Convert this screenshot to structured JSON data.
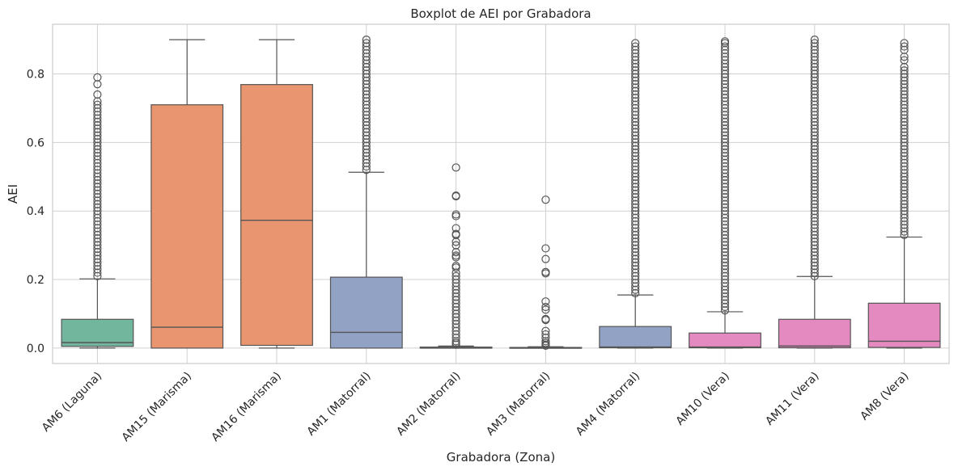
{
  "chart_data": {
    "type": "boxplot",
    "title": "Boxplot de AEI por Grabadora",
    "xlabel": "Grabadora (Zona)",
    "ylabel": "AEI",
    "ylim": [
      -0.045,
      0.945
    ],
    "yticks": [
      0.0,
      0.2,
      0.4,
      0.6,
      0.8
    ],
    "ytick_labels": [
      "0.0",
      "0.2",
      "0.4",
      "0.6",
      "0.8"
    ],
    "grid": true,
    "categories": [
      "AM6 (Laguna)",
      "AM15 (Marisma)",
      "AM16 (Marisma)",
      "AM1 (Matorral)",
      "AM2 (Matorral)",
      "AM3 (Matorral)",
      "AM4 (Matorral)",
      "AM10 (Vera)",
      "AM11 (Vera)",
      "AM8 (Vera)"
    ],
    "boxes": [
      {
        "category": "AM6 (Laguna)",
        "color": "#72b69e",
        "min": 0.0,
        "q1": 0.005,
        "median": 0.016,
        "q3": 0.084,
        "whisker_high": 0.202,
        "outliers": [
          0.79,
          0.77,
          0.74,
          0.72,
          0.71,
          0.7,
          0.69,
          0.68,
          0.67,
          0.66,
          0.65,
          0.64,
          0.63,
          0.62,
          0.61,
          0.6,
          0.59,
          0.58,
          0.57,
          0.56,
          0.55,
          0.54,
          0.53,
          0.52,
          0.51,
          0.5,
          0.49,
          0.48,
          0.47,
          0.46,
          0.45,
          0.44,
          0.43,
          0.42,
          0.41,
          0.4,
          0.39,
          0.38,
          0.37,
          0.36,
          0.35,
          0.34,
          0.33,
          0.32,
          0.31,
          0.3,
          0.29,
          0.28,
          0.27,
          0.26,
          0.25,
          0.24,
          0.23,
          0.22,
          0.21
        ]
      },
      {
        "category": "AM15 (Marisma)",
        "color": "#e9956f",
        "min": 0.0,
        "q1": 0.0,
        "median": 0.061,
        "q3": 0.71,
        "whisker_high": 0.9,
        "outliers": []
      },
      {
        "category": "AM16 (Marisma)",
        "color": "#e9956f",
        "min": 0.0,
        "q1": 0.008,
        "median": 0.373,
        "q3": 0.769,
        "whisker_high": 0.9,
        "outliers": []
      },
      {
        "category": "AM1 (Matorral)",
        "color": "#91a2c5",
        "min": 0.0,
        "q1": 0.0,
        "median": 0.046,
        "q3": 0.207,
        "whisker_high": 0.513,
        "outliers": [
          0.9,
          0.89,
          0.88,
          0.87,
          0.86,
          0.85,
          0.84,
          0.83,
          0.82,
          0.81,
          0.8,
          0.79,
          0.78,
          0.77,
          0.76,
          0.75,
          0.74,
          0.73,
          0.72,
          0.71,
          0.7,
          0.69,
          0.68,
          0.67,
          0.66,
          0.65,
          0.64,
          0.63,
          0.62,
          0.61,
          0.6,
          0.59,
          0.58,
          0.57,
          0.56,
          0.55,
          0.54,
          0.53,
          0.52
        ]
      },
      {
        "category": "AM2 (Matorral)",
        "color": "#91a2c5",
        "min": 0.0,
        "q1": 0.0,
        "median": 0.0,
        "q3": 0.003,
        "whisker_high": 0.006,
        "outliers": [
          0.527,
          0.445,
          0.443,
          0.39,
          0.385,
          0.35,
          0.333,
          0.33,
          0.31,
          0.3,
          0.28,
          0.27,
          0.265,
          0.24,
          0.235,
          0.22,
          0.21,
          0.2,
          0.19,
          0.18,
          0.17,
          0.16,
          0.15,
          0.14,
          0.13,
          0.12,
          0.11,
          0.1,
          0.09,
          0.08,
          0.07,
          0.06,
          0.05,
          0.04,
          0.03,
          0.02,
          0.015,
          0.01
        ]
      },
      {
        "category": "AM3 (Matorral)",
        "color": "#91a2c5",
        "min": 0.0,
        "q1": 0.0,
        "median": 0.0,
        "q3": 0.002,
        "whisker_high": 0.004,
        "outliers": [
          0.433,
          0.291,
          0.26,
          0.222,
          0.218,
          0.136,
          0.12,
          0.112,
          0.085,
          0.082,
          0.05,
          0.04,
          0.03,
          0.02,
          0.015,
          0.01,
          0.007
        ]
      },
      {
        "category": "AM4 (Matorral)",
        "color": "#91a2c5",
        "min": 0.0,
        "q1": 0.001,
        "median": 0.003,
        "q3": 0.063,
        "whisker_high": 0.155,
        "outliers": [
          0.89,
          0.88,
          0.87,
          0.86,
          0.85,
          0.84,
          0.83,
          0.82,
          0.81,
          0.8,
          0.79,
          0.78,
          0.77,
          0.76,
          0.75,
          0.74,
          0.73,
          0.72,
          0.71,
          0.7,
          0.69,
          0.68,
          0.67,
          0.66,
          0.65,
          0.64,
          0.63,
          0.62,
          0.61,
          0.6,
          0.59,
          0.58,
          0.57,
          0.56,
          0.55,
          0.54,
          0.53,
          0.52,
          0.51,
          0.5,
          0.49,
          0.48,
          0.47,
          0.46,
          0.45,
          0.44,
          0.43,
          0.42,
          0.41,
          0.4,
          0.39,
          0.38,
          0.37,
          0.36,
          0.35,
          0.34,
          0.33,
          0.32,
          0.31,
          0.3,
          0.29,
          0.28,
          0.27,
          0.26,
          0.25,
          0.24,
          0.23,
          0.22,
          0.21,
          0.2,
          0.19,
          0.18,
          0.17,
          0.16
        ]
      },
      {
        "category": "AM10 (Vera)",
        "color": "#e58ac0",
        "min": 0.0,
        "q1": 0.001,
        "median": 0.003,
        "q3": 0.044,
        "whisker_high": 0.106,
        "outliers": [
          0.895,
          0.89,
          0.88,
          0.87,
          0.86,
          0.85,
          0.84,
          0.83,
          0.82,
          0.81,
          0.8,
          0.79,
          0.78,
          0.77,
          0.76,
          0.75,
          0.74,
          0.73,
          0.72,
          0.71,
          0.7,
          0.69,
          0.68,
          0.67,
          0.66,
          0.65,
          0.64,
          0.63,
          0.62,
          0.61,
          0.6,
          0.59,
          0.58,
          0.57,
          0.56,
          0.55,
          0.54,
          0.53,
          0.52,
          0.51,
          0.5,
          0.49,
          0.48,
          0.47,
          0.46,
          0.45,
          0.44,
          0.43,
          0.42,
          0.41,
          0.4,
          0.39,
          0.38,
          0.37,
          0.36,
          0.35,
          0.34,
          0.33,
          0.32,
          0.31,
          0.3,
          0.29,
          0.28,
          0.27,
          0.26,
          0.25,
          0.24,
          0.23,
          0.22,
          0.21,
          0.2,
          0.19,
          0.18,
          0.17,
          0.16,
          0.15,
          0.14,
          0.13,
          0.12,
          0.11
        ]
      },
      {
        "category": "AM11 (Vera)",
        "color": "#e58ac0",
        "min": 0.0,
        "q1": 0.001,
        "median": 0.006,
        "q3": 0.084,
        "whisker_high": 0.209,
        "outliers": [
          0.9,
          0.89,
          0.88,
          0.87,
          0.86,
          0.85,
          0.84,
          0.83,
          0.82,
          0.81,
          0.8,
          0.79,
          0.78,
          0.77,
          0.76,
          0.75,
          0.74,
          0.73,
          0.72,
          0.71,
          0.7,
          0.69,
          0.68,
          0.67,
          0.66,
          0.65,
          0.64,
          0.63,
          0.62,
          0.61,
          0.6,
          0.59,
          0.58,
          0.57,
          0.56,
          0.55,
          0.54,
          0.53,
          0.52,
          0.51,
          0.5,
          0.49,
          0.48,
          0.47,
          0.46,
          0.45,
          0.44,
          0.43,
          0.42,
          0.41,
          0.4,
          0.39,
          0.38,
          0.37,
          0.36,
          0.35,
          0.34,
          0.33,
          0.32,
          0.31,
          0.3,
          0.29,
          0.28,
          0.27,
          0.26,
          0.25,
          0.24,
          0.23,
          0.22,
          0.21
        ]
      },
      {
        "category": "AM8 (Vera)",
        "color": "#e58ac0",
        "min": 0.0,
        "q1": 0.002,
        "median": 0.02,
        "q3": 0.131,
        "whisker_high": 0.324,
        "outliers": [
          0.89,
          0.88,
          0.87,
          0.85,
          0.84,
          0.82,
          0.81,
          0.8,
          0.79,
          0.78,
          0.77,
          0.76,
          0.75,
          0.74,
          0.73,
          0.72,
          0.71,
          0.7,
          0.69,
          0.68,
          0.67,
          0.66,
          0.65,
          0.64,
          0.63,
          0.62,
          0.61,
          0.6,
          0.59,
          0.58,
          0.57,
          0.56,
          0.55,
          0.54,
          0.53,
          0.52,
          0.51,
          0.5,
          0.49,
          0.48,
          0.47,
          0.46,
          0.45,
          0.44,
          0.43,
          0.42,
          0.41,
          0.4,
          0.39,
          0.38,
          0.37,
          0.36,
          0.35,
          0.34,
          0.33
        ]
      }
    ]
  }
}
